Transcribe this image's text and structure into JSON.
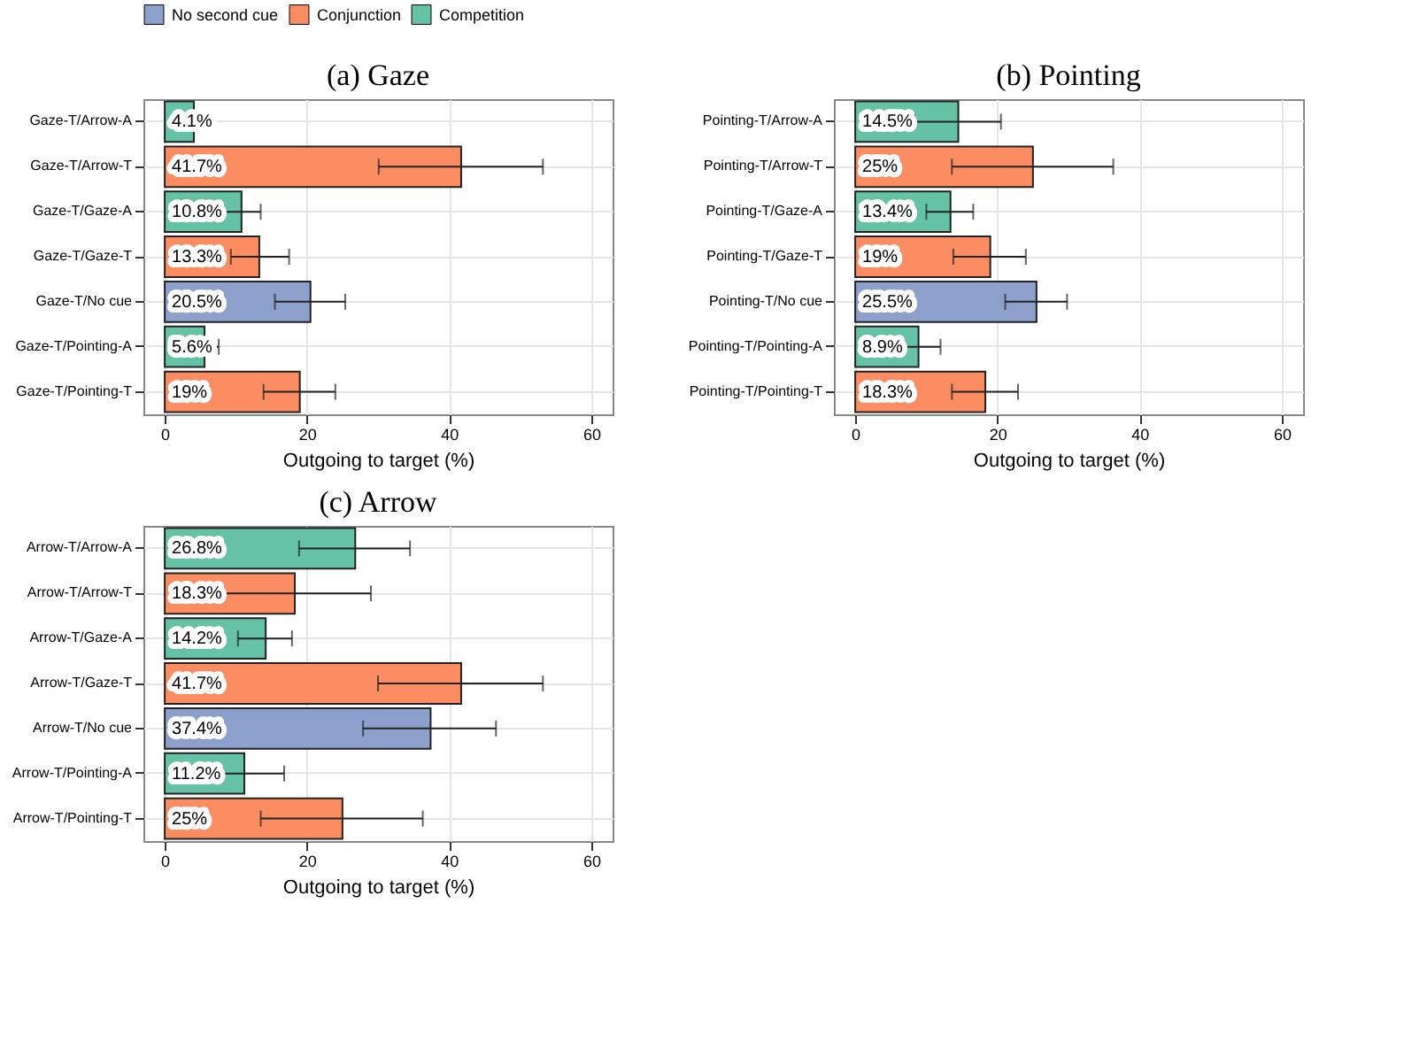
{
  "chart_data": [
    {
      "type": "bar",
      "orientation": "horizontal",
      "title": "(a) Gaze",
      "xlabel": "Outgoing to target (%)",
      "legend": "top",
      "grid": true,
      "xlim": [
        -3,
        63
      ],
      "xticks": [
        0,
        20,
        40,
        60
      ],
      "categories": [
        "Gaze-T/Arrow-A",
        "Gaze-T/Arrow-T",
        "Gaze-T/Gaze-A",
        "Gaze-T/Gaze-T",
        "Gaze-T/No cue",
        "Gaze-T/Pointing-A",
        "Gaze-T/Pointing-T"
      ],
      "series": [
        {
          "name": "No second cue",
          "color": "#8da0cb",
          "values": [
            null,
            null,
            null,
            null,
            20.5,
            null,
            null
          ],
          "errors": [
            null,
            null,
            null,
            null,
            [
              15.5,
              25.4
            ],
            null,
            null
          ],
          "value_labels": [
            null,
            null,
            null,
            null,
            "20.5%",
            null,
            null
          ]
        },
        {
          "name": "Conjunction",
          "color": "#fc8d62",
          "values": [
            null,
            41.7,
            null,
            13.3,
            null,
            null,
            19
          ],
          "errors": [
            null,
            [
              30.1,
              53.2
            ],
            null,
            [
              9.3,
              17.5
            ],
            null,
            null,
            [
              13.9,
              24.0
            ]
          ],
          "value_labels": [
            null,
            "41.7%",
            null,
            "13.3%",
            null,
            null,
            "19%"
          ]
        },
        {
          "name": "Competition",
          "color": "#66c2a5",
          "values": [
            4.1,
            null,
            10.8,
            null,
            null,
            5.6,
            null
          ],
          "errors": [
            null,
            null,
            [
              8.2,
              13.5
            ],
            null,
            null,
            [
              3.8,
              7.6
            ],
            null
          ],
          "value_labels": [
            "4.1%",
            null,
            "10.8%",
            null,
            null,
            "5.6%",
            null
          ]
        }
      ]
    },
    {
      "type": "bar",
      "orientation": "horizontal",
      "title": "(b) Pointing",
      "xlabel": "Outgoing to target (%)",
      "legend": "top",
      "grid": true,
      "xlim": [
        -3,
        63
      ],
      "xticks": [
        0,
        20,
        40,
        60
      ],
      "categories": [
        "Pointing-T/Arrow-A",
        "Pointing-T/Arrow-T",
        "Pointing-T/Gaze-A",
        "Pointing-T/Gaze-T",
        "Pointing-T/No cue",
        "Pointing-T/Pointing-A",
        "Pointing-T/Pointing-T"
      ],
      "series": [
        {
          "name": "No second cue",
          "color": "#8da0cb",
          "values": [
            null,
            null,
            null,
            null,
            25.5,
            null,
            null
          ],
          "errors": [
            null,
            null,
            null,
            null,
            [
              21.1,
              29.8
            ],
            null,
            null
          ],
          "value_labels": [
            null,
            null,
            null,
            null,
            "25.5%",
            null,
            null
          ]
        },
        {
          "name": "Conjunction",
          "color": "#fc8d62",
          "values": [
            null,
            25,
            null,
            19,
            null,
            null,
            18.3
          ],
          "errors": [
            null,
            [
              13.6,
              36.3
            ],
            null,
            [
              13.8,
              24.0
            ],
            null,
            null,
            [
              13.6,
              22.9
            ]
          ],
          "value_labels": [
            null,
            "25%",
            null,
            "19%",
            null,
            null,
            "18.3%"
          ]
        },
        {
          "name": "Competition",
          "color": "#66c2a5",
          "values": [
            14.5,
            null,
            13.4,
            null,
            null,
            8.9,
            null
          ],
          "errors": [
            [
              8.3,
              20.5
            ],
            null,
            [
              10.0,
              16.6
            ],
            null,
            null,
            [
              5.8,
              12.0
            ],
            null
          ],
          "value_labels": [
            "14.5%",
            null,
            "13.4%",
            null,
            null,
            "8.9%",
            null
          ]
        }
      ]
    },
    {
      "type": "bar",
      "orientation": "horizontal",
      "title": "(c) Arrow",
      "xlabel": "Outgoing to target (%)",
      "legend": "top",
      "grid": true,
      "xlim": [
        -3,
        63
      ],
      "xticks": [
        0,
        20,
        40,
        60
      ],
      "categories": [
        "Arrow-T/Arrow-A",
        "Arrow-T/Arrow-T",
        "Arrow-T/Gaze-A",
        "Arrow-T/Gaze-T",
        "Arrow-T/No cue",
        "Arrow-T/Pointing-A",
        "Arrow-T/Pointing-T"
      ],
      "series": [
        {
          "name": "No second cue",
          "color": "#8da0cb",
          "values": [
            null,
            null,
            null,
            null,
            37.4,
            null,
            null
          ],
          "errors": [
            null,
            null,
            null,
            null,
            [
              27.9,
              46.6
            ],
            null,
            null
          ],
          "value_labels": [
            null,
            null,
            null,
            null,
            "37.4%",
            null,
            null
          ]
        },
        {
          "name": "Conjunction",
          "color": "#fc8d62",
          "values": [
            null,
            18.3,
            null,
            41.7,
            null,
            null,
            25
          ],
          "errors": [
            null,
            [
              7.6,
              29.0
            ],
            null,
            [
              30.0,
              53.2
            ],
            null,
            null,
            [
              13.5,
              36.3
            ]
          ],
          "value_labels": [
            null,
            "18.3%",
            null,
            "41.7%",
            null,
            null,
            "25%"
          ]
        },
        {
          "name": "Competition",
          "color": "#66c2a5",
          "values": [
            26.8,
            null,
            14.2,
            null,
            null,
            11.2,
            null
          ],
          "errors": [
            [
              18.9,
              34.5
            ],
            null,
            [
              10.3,
              17.9
            ],
            null,
            null,
            [
              7.1,
              16.8
            ],
            null
          ],
          "value_labels": [
            "26.8%",
            null,
            "14.2%",
            null,
            null,
            "11.2%",
            null
          ]
        }
      ]
    }
  ]
}
